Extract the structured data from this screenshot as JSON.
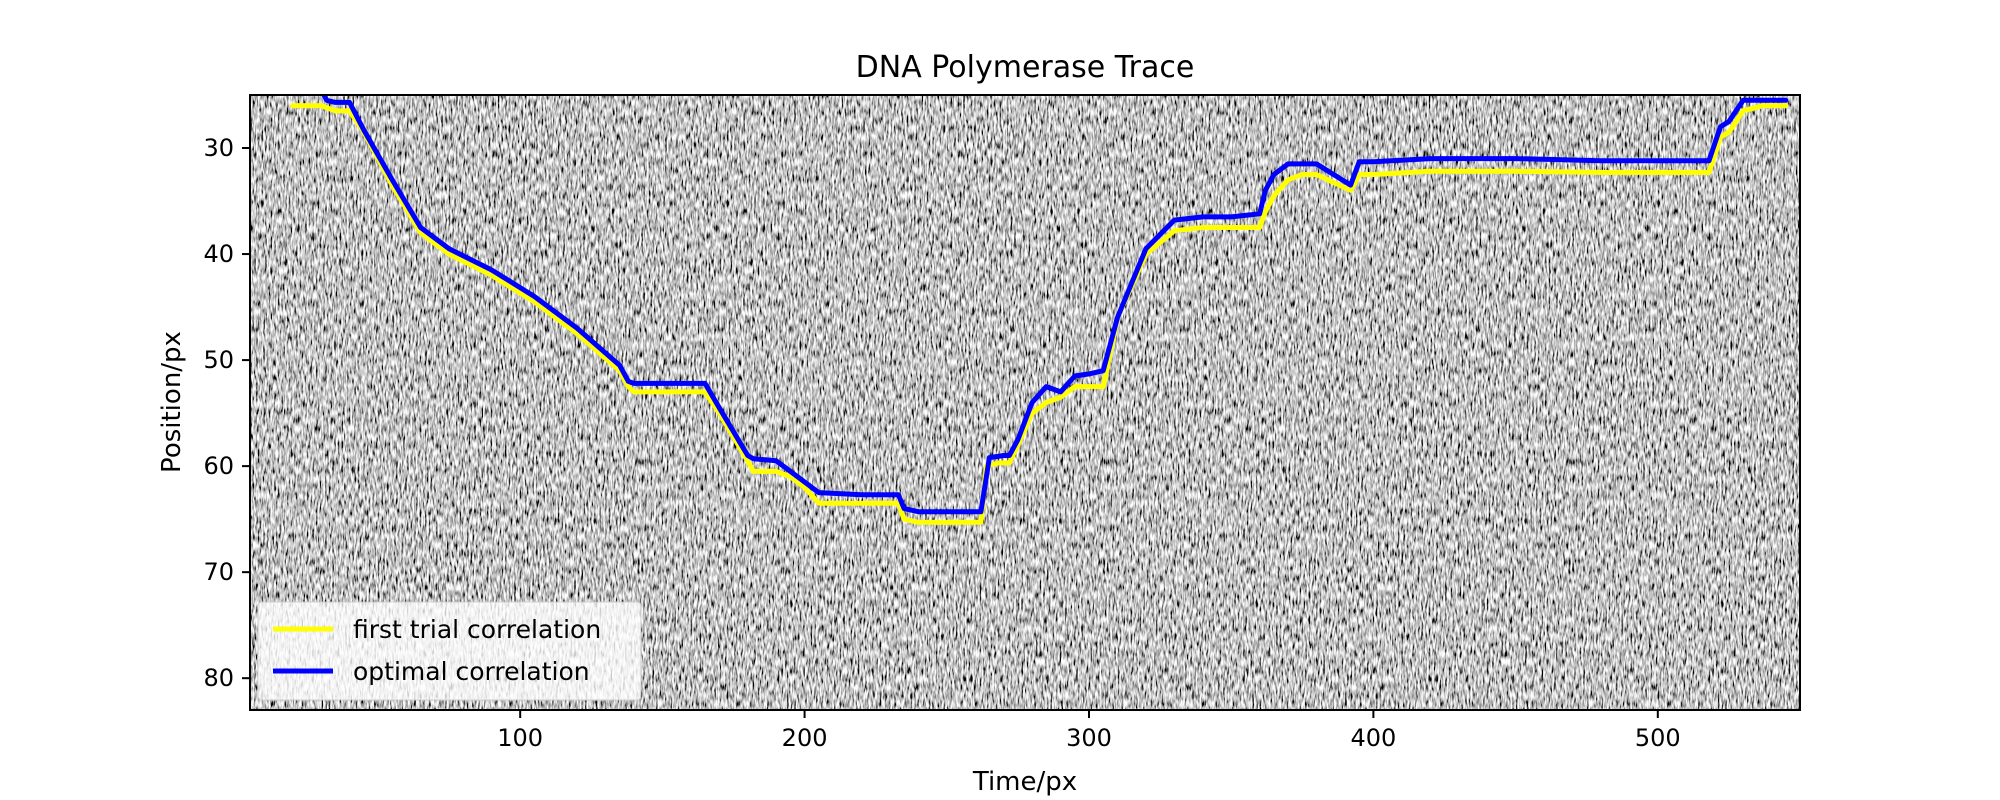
{
  "chart_data": {
    "type": "line",
    "title": "DNA Polymerase Trace",
    "xlabel": "Time/px",
    "ylabel": "Position/px",
    "xlim": [
      5,
      550
    ],
    "ylim": [
      83,
      25
    ],
    "y_axis_inverted": true,
    "x_ticks": [
      100,
      200,
      300,
      400,
      500
    ],
    "x_tick_labels": [
      "100",
      "200",
      "300",
      "400",
      "500"
    ],
    "y_ticks": [
      30,
      40,
      50,
      60,
      70,
      80
    ],
    "y_tick_labels": [
      "30",
      "40",
      "50",
      "60",
      "70",
      "80"
    ],
    "background": "grayscale kymograph image (noise)",
    "grid": false,
    "legend": {
      "placement": "lower-left",
      "entries": [
        "first trial correlation",
        "optimal correlation"
      ]
    },
    "series": [
      {
        "name": "first trial correlation",
        "color": "#ffff00",
        "x": [
          20,
          30,
          35,
          40,
          45,
          55,
          65,
          75,
          90,
          105,
          120,
          135,
          138,
          140,
          150,
          160,
          165,
          170,
          180,
          182,
          190,
          195,
          200,
          205,
          220,
          233,
          235,
          240,
          250,
          255,
          262,
          264,
          268,
          272,
          275,
          280,
          285,
          290,
          295,
          300,
          305,
          310,
          320,
          330,
          340,
          350,
          360,
          362,
          365,
          370,
          375,
          380,
          392,
          395,
          400,
          420,
          450,
          480,
          500,
          515,
          518,
          522,
          525,
          530,
          537,
          545
        ],
        "y": [
          26,
          26,
          26.5,
          26.5,
          28.5,
          33.5,
          38,
          40,
          42,
          44.5,
          47.5,
          51,
          52.5,
          53,
          53,
          53,
          53,
          55,
          59.5,
          60.5,
          60.5,
          61,
          62,
          63.5,
          63.5,
          63.5,
          65,
          65.3,
          65.3,
          65.3,
          65.3,
          60,
          59.7,
          59.7,
          58,
          55,
          54,
          53.5,
          52.5,
          52.5,
          52.5,
          46,
          40,
          37.8,
          37.5,
          37.5,
          37.5,
          36,
          34.5,
          33,
          32.5,
          32.5,
          34,
          32.5,
          32.5,
          32.2,
          32.2,
          32.3,
          32.3,
          32.3,
          32.3,
          29,
          28.5,
          26.5,
          26,
          26
        ]
      },
      {
        "name": "optimal correlation",
        "color": "#0000ff",
        "x": [
          18,
          30,
          32,
          35,
          40,
          45,
          55,
          65,
          75,
          90,
          105,
          120,
          135,
          138,
          140,
          150,
          160,
          165,
          170,
          180,
          182,
          190,
          195,
          200,
          205,
          220,
          233,
          235,
          240,
          250,
          255,
          260,
          262,
          265,
          270,
          272,
          275,
          280,
          285,
          290,
          295,
          300,
          305,
          310,
          320,
          330,
          340,
          350,
          360,
          362,
          365,
          370,
          375,
          380,
          392,
          395,
          400,
          420,
          450,
          480,
          500,
          515,
          518,
          522,
          525,
          530,
          537,
          545
        ],
        "y": [
          24.5,
          24.5,
          25.5,
          25.7,
          25.7,
          28.3,
          33,
          37.5,
          39.5,
          41.5,
          44,
          47,
          50.5,
          52,
          52.2,
          52.2,
          52.2,
          52.2,
          54.5,
          59,
          59.3,
          59.5,
          60.5,
          61.5,
          62.5,
          62.7,
          62.7,
          64,
          64.3,
          64.3,
          64.3,
          64.3,
          64.3,
          59.2,
          59,
          59,
          57.5,
          54,
          52.5,
          53,
          51.5,
          51.3,
          51,
          46,
          39.5,
          36.8,
          36.5,
          36.5,
          36.2,
          34,
          32.5,
          31.5,
          31.5,
          31.5,
          33.5,
          31.3,
          31.3,
          31,
          31,
          31.2,
          31.2,
          31.2,
          31.2,
          28,
          27.5,
          25.5,
          25.5,
          25.5
        ]
      }
    ]
  }
}
